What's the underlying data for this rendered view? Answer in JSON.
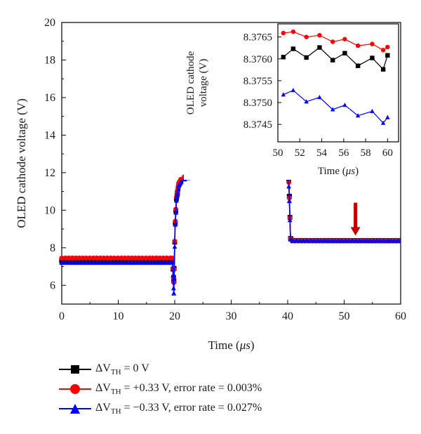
{
  "chart_data": [
    {
      "type": "line",
      "xlabel_text": "Time (",
      "xlabel_unit": "μs",
      "xlabel_close": ")",
      "ylabel": "OLED cathode voltage (V)",
      "xlim": [
        0,
        60
      ],
      "ylim": [
        5,
        20
      ],
      "xticks": [
        0,
        10,
        20,
        30,
        40,
        50,
        60
      ],
      "yticks": [
        6,
        8,
        10,
        12,
        14,
        16,
        18,
        20
      ],
      "marker_x_start": 0,
      "marker_x_step": 0.62,
      "series": [
        {
          "name": "ΔV_TH = 0 V",
          "color": "#000000",
          "marker": "square",
          "points": [
            [
              0,
              7.3
            ],
            [
              19.6,
              7.3
            ],
            [
              19.85,
              6.2
            ],
            [
              20.05,
              9.0
            ],
            [
              20.3,
              10.6
            ],
            [
              20.7,
              11.35
            ],
            [
              21.2,
              11.6
            ],
            [
              22,
              11.75
            ],
            [
              24,
              11.82
            ],
            [
              39.8,
              11.82
            ],
            [
              40.0,
              13.0
            ],
            [
              40.25,
              11.3
            ],
            [
              40.5,
              8.5
            ],
            [
              40.8,
              8.38
            ],
            [
              60,
              8.376
            ]
          ]
        },
        {
          "name": "ΔV_TH = +0.33 V, error rate = 0.003%",
          "color": "#ff0000",
          "marker": "circle",
          "points": [
            [
              0,
              7.45
            ],
            [
              19.6,
              7.45
            ],
            [
              19.85,
              6.1
            ],
            [
              20.05,
              9.1
            ],
            [
              20.3,
              10.7
            ],
            [
              20.7,
              11.45
            ],
            [
              21.2,
              11.7
            ],
            [
              22,
              11.82
            ],
            [
              24,
              11.86
            ],
            [
              39.8,
              11.86
            ],
            [
              40.0,
              12.6
            ],
            [
              40.25,
              11.2
            ],
            [
              40.5,
              8.5
            ],
            [
              40.8,
              8.38
            ],
            [
              60,
              8.3765
            ]
          ]
        },
        {
          "name": "ΔV_TH = −0.33 V, error rate = 0.027%",
          "color": "#0000ff",
          "marker": "triangle",
          "points": [
            [
              0,
              7.2
            ],
            [
              19.6,
              7.2
            ],
            [
              19.85,
              5.5
            ],
            [
              20.05,
              8.9
            ],
            [
              20.3,
              10.5
            ],
            [
              20.7,
              11.3
            ],
            [
              21.2,
              11.55
            ],
            [
              22,
              11.7
            ],
            [
              24,
              11.76
            ],
            [
              39.8,
              11.76
            ],
            [
              40.0,
              12.3
            ],
            [
              40.25,
              11.0
            ],
            [
              40.5,
              8.45
            ],
            [
              40.8,
              8.38
            ],
            [
              60,
              8.375
            ]
          ]
        }
      ],
      "annotation": {
        "type": "arrow",
        "x": 52,
        "y_from": 10.4,
        "y_to": 8.65,
        "color": "#c00000"
      }
    },
    {
      "type": "line",
      "inset": true,
      "xlabel_text": "Time (",
      "xlabel_unit": "μs",
      "xlabel_close": ")",
      "ylabel_lines": [
        "OLED cathode",
        "voltage (V)"
      ],
      "xlim": [
        50,
        61
      ],
      "ylim": [
        8.3741,
        8.3768
      ],
      "xticks": [
        50,
        52,
        54,
        56,
        58,
        60
      ],
      "yticks": [
        "8.3745",
        "8.3750",
        "8.3755",
        "8.3760",
        "8.3765"
      ],
      "series": [
        {
          "name": "ΔV_TH = 0 V",
          "color": "#000000",
          "marker": "square",
          "x": [
            50.5,
            51.4,
            52.6,
            53.8,
            55.0,
            56.1,
            57.3,
            58.6,
            59.6,
            60.0
          ],
          "y": [
            8.37604,
            8.37623,
            8.37603,
            8.37626,
            8.37597,
            8.37613,
            8.37584,
            8.37602,
            8.37576,
            8.37608
          ]
        },
        {
          "name": "ΔV_TH = +0.33 V, error rate = 0.003%",
          "color": "#ff0000",
          "marker": "circle",
          "x": [
            50.5,
            51.4,
            52.6,
            53.8,
            55.0,
            56.1,
            57.3,
            58.6,
            59.6,
            60.0
          ],
          "y": [
            8.37659,
            8.37662,
            8.3765,
            8.37654,
            8.37639,
            8.37645,
            8.3763,
            8.37634,
            8.3762,
            8.37627
          ]
        },
        {
          "name": "ΔV_TH = −0.33 V, error rate = 0.027%",
          "color": "#0000ff",
          "marker": "triangle",
          "x": [
            50.5,
            51.4,
            52.6,
            53.8,
            55.0,
            56.1,
            57.3,
            58.6,
            59.6,
            60.0
          ],
          "y": [
            8.37518,
            8.37528,
            8.37502,
            8.37512,
            8.37484,
            8.37494,
            8.3747,
            8.3748,
            8.37453,
            8.37466
          ]
        }
      ]
    }
  ],
  "legend": [
    {
      "prefix": "ΔV",
      "sub": "TH",
      "suffix": " = 0 V",
      "color": "#000000",
      "marker": "square"
    },
    {
      "prefix": "ΔV",
      "sub": "TH",
      "suffix": " = +0.33 V, error rate = 0.003%",
      "color": "#ff0000",
      "marker": "circle"
    },
    {
      "prefix": "ΔV",
      "sub": "TH",
      "suffix": " = −0.33 V, error rate = 0.027%",
      "color": "#0000ff",
      "marker": "triangle"
    }
  ]
}
